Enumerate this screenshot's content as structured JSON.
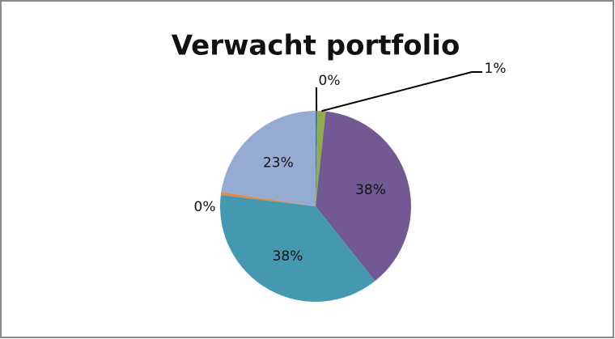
{
  "chart_data": {
    "type": "pie",
    "title": "Verwacht portfolio",
    "values": [
      0.3,
      1.4,
      37.6,
      37.6,
      0.5,
      22.6
    ],
    "value_labels": [
      "0%",
      "1%",
      "38%",
      "38%",
      "0%",
      "23%"
    ],
    "colors": [
      "#4572a7",
      "#8fac4e",
      "#735993",
      "#4499b0",
      "#e0894a",
      "#96abd2"
    ]
  }
}
